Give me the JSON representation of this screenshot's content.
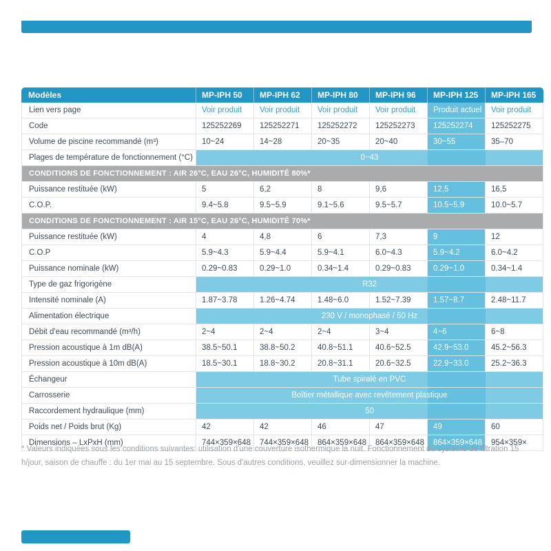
{
  "colors": {
    "header_teal": "#2196c4",
    "highlight_blue": "#64c0de",
    "span_blue": "#7fcbe5",
    "section_gray": "#a9abac",
    "link_teal": "#2aa2c8",
    "text_dark": "#3a4a57"
  },
  "table": {
    "corner_label": "Modèles",
    "columns": [
      "MP-IPH 50",
      "MP-IPH 62",
      "MP-IPH 80",
      "MP-IPH 96",
      "MP-IPH 125",
      "MP-IPH 165"
    ],
    "highlight_column_index": 4,
    "rows": [
      {
        "type": "data",
        "label": "Lien vers page",
        "link_row": true,
        "values": [
          "Voir produit",
          "Voir produit",
          "Voir produit",
          "Voir produit",
          "Produit actuel",
          "Voir produit"
        ]
      },
      {
        "type": "data",
        "label": "Code",
        "values": [
          "125252269",
          "125252271",
          "125252272",
          "125252273",
          "125252274",
          "125252275"
        ]
      },
      {
        "type": "data",
        "label": "Volume de piscine recommandé (m³)",
        "values": [
          "10~24",
          "14~28",
          "20~35",
          "20~40",
          "30~55",
          "35–70"
        ]
      },
      {
        "type": "span",
        "label": "Plages de température de fonctionnement (°C)",
        "value": "0~43"
      },
      {
        "type": "section",
        "label": "CONDITIONS DE FONCTIONNEMENT : AIR 26°C, EAU 26°C, HUMIDITÉ 80%*"
      },
      {
        "type": "data",
        "label": "Puissance restituée (kW)",
        "values": [
          "5",
          "6,2",
          "8",
          "9,6",
          "12,5",
          "16,5"
        ]
      },
      {
        "type": "data",
        "label": "C.O.P.",
        "values": [
          "9.4~5.8",
          "9.5~5.9",
          "9.1~5.6",
          "9.5~5.7",
          "10.5~5.9",
          "10.0~5.7"
        ]
      },
      {
        "type": "section",
        "label": "CONDITIONS DE FONCTIONNEMENT : AIR 15°C, EAU 26°C, HUMIDITÉ 70%*"
      },
      {
        "type": "data",
        "label": "Puissance restituée (kW)",
        "values": [
          "4",
          "4,8",
          "6",
          "7,3",
          "9",
          "12"
        ]
      },
      {
        "type": "data",
        "label": "C.O.P",
        "values": [
          "5.9~4.3",
          "5.9~4.4",
          "5.9~4.1",
          "6.0~4.3",
          "5.9~4.2",
          "6.0~4.2"
        ]
      },
      {
        "type": "data",
        "label": "Puissance nominale (kW)",
        "values": [
          "0.29~0.83",
          "0.29~1.0",
          "0.34~1.4",
          "0.29~0.83",
          "0.29~1.0",
          "0.34~1.4"
        ]
      },
      {
        "type": "span",
        "label": "Type de gaz frigorigène",
        "value": "R32"
      },
      {
        "type": "data",
        "label": "Intensité nominale (A)",
        "values": [
          "1.87~3.78",
          "1.26~4.74",
          "1.48~6.0",
          "1.52~7.39",
          "1.57~8.7",
          "2.48~11.7"
        ]
      },
      {
        "type": "span",
        "label": "Alimentation électrique",
        "value": "230 V / monophasé / 50 Hz"
      },
      {
        "type": "data",
        "label": "Débit d'eau recommandé (m³/h)",
        "values": [
          "2~4",
          "2~4",
          "2~4",
          "3~4",
          "4~6",
          "6~8"
        ]
      },
      {
        "type": "data",
        "label": "Pression acoustique à 1m dB(A)",
        "values": [
          "38.5~50.1",
          "38.8~50.2",
          "40.8~51.1",
          "40.6~52.5",
          "42.9~53.0",
          "45.2~56.3"
        ]
      },
      {
        "type": "data",
        "label": "Pression acoustique à 10m dB(A)",
        "values": [
          "18.5~30.1",
          "18.8~30.2",
          "20.8~31.1",
          "20.6~32.5",
          "22.9~33.0",
          "25.2~36.3"
        ]
      },
      {
        "type": "span",
        "label": "Échangeur",
        "value": "Tube spiralé en PVC"
      },
      {
        "type": "span",
        "label": "Carrosserie",
        "value": "Boîtier métallique avec revêtement plastique"
      },
      {
        "type": "span",
        "label": "Raccordement hydraulique (mm)",
        "value": "50"
      },
      {
        "type": "data",
        "label": "Poids net / Poids brut (Kg)",
        "values": [
          "42",
          "42",
          "46",
          "47",
          "49",
          "60"
        ]
      },
      {
        "type": "data",
        "label": "Dimensions – LxPxH (mm)",
        "values": [
          "744×359×648",
          "744×359×648",
          "864×359×648",
          "864×359×648",
          "864×359×648",
          "954×359×"
        ]
      }
    ]
  },
  "footnote": "* Valeurs indiquées sous les conditions suivantes: utilisation d'une couverture isothermique la nuit. Fonctionnement du système de filtration 15 h/jour, saison de chauffe : du 1er mai au 15 septembre. Sous d'autres conditions, veuillez sur-dimensionner la machine."
}
